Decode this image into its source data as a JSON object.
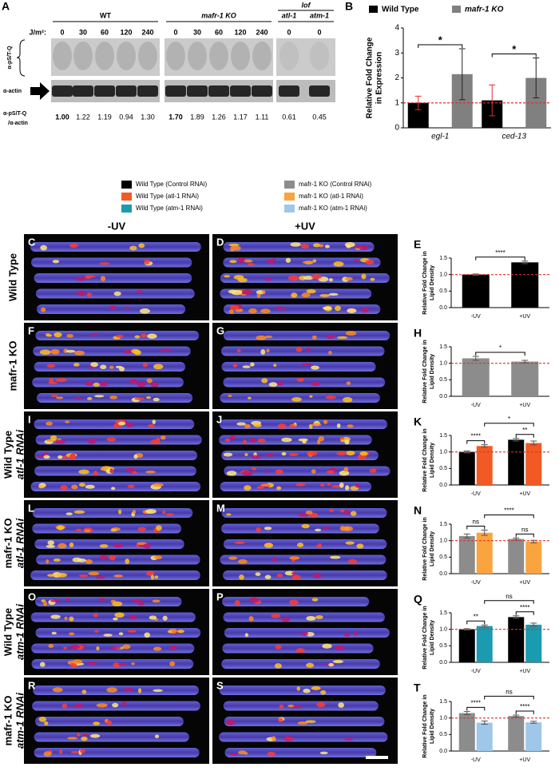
{
  "panel_a": {
    "label": "A",
    "groups": [
      "WT",
      "mafr-1 KO",
      "lof"
    ],
    "lof_strains": [
      "atl-1",
      "atm-1"
    ],
    "dose_label": "J/m²:",
    "doses": [
      0,
      30,
      60,
      120,
      240,
      0,
      30,
      60,
      120,
      240,
      0,
      0
    ],
    "blot_labels": [
      "α-pS/T-Q",
      "α-actin"
    ],
    "ratio_label": [
      "α-pS/T-Q",
      "/α-actin"
    ],
    "ratios": [
      "1.00",
      "1.22",
      "1.19",
      "0.94",
      "1.30",
      "1.70",
      "1.89",
      "1.26",
      "1.17",
      "1.11",
      "0.61",
      "0.45"
    ]
  },
  "legend": [
    {
      "name": "Wild Type (Control RNAi)",
      "color": "#000000"
    },
    {
      "name": "Wild Type (atl-1 RNAi)",
      "color": "#f15a24"
    },
    {
      "name": "Wild Type (atm-1 RNAi)",
      "color": "#1a9bb0"
    },
    {
      "name": "mafr-1 KO (Control RNAi)",
      "color": "#8c8c8c"
    },
    {
      "name": "mafr-1 KO (atl-1 RNAi)",
      "color": "#f9a43f"
    },
    {
      "name": "mafr-1 KO (atm-1 RNAi)",
      "color": "#9ec7ea"
    }
  ],
  "images": {
    "column_titles": [
      "-UV",
      "+UV"
    ],
    "rows": [
      {
        "labels": [
          "C",
          "D"
        ],
        "title": [
          "Wild Type"
        ]
      },
      {
        "labels": [
          "F",
          "G"
        ],
        "title": [
          "mafr-1 KO"
        ]
      },
      {
        "labels": [
          "I",
          "J"
        ],
        "title": [
          "Wild Type",
          "atl-1 RNAi"
        ]
      },
      {
        "labels": [
          "L",
          "M"
        ],
        "title": [
          "mafr-1 KO",
          "atl-1 RNAi"
        ]
      },
      {
        "labels": [
          "O",
          "P"
        ],
        "title": [
          "Wild Type",
          "atm-1 RNAi"
        ]
      },
      {
        "labels": [
          "R",
          "S"
        ],
        "title": [
          "mafr-1 KO",
          "atm-1 RNAi"
        ]
      }
    ]
  },
  "chart_data": [
    {
      "type": "bar",
      "label": "B",
      "categories": [
        "egl-1",
        "ced-13"
      ],
      "y_label": [
        "Relative Fold Change",
        "in Expression"
      ],
      "ylim": [
        0,
        4
      ],
      "yticks": [
        0,
        1,
        2,
        3,
        4
      ],
      "reference_line": 1,
      "reference_color": "#e0312b",
      "series": [
        {
          "name": "Wild Type",
          "color": "#000000",
          "values": [
            1.0,
            1.1
          ],
          "errors": [
            0.27,
            0.62
          ]
        },
        {
          "name": "mafr-1 KO",
          "color": "#808080",
          "values": [
            2.15,
            2.0
          ],
          "errors": [
            1.02,
            0.8
          ]
        }
      ],
      "annotations": [
        "*",
        "*"
      ]
    },
    {
      "type": "bar",
      "label": "E",
      "categories": [
        "-UV",
        "+UV"
      ],
      "y_label": [
        "Relative Fold Change in",
        "Lipid Density"
      ],
      "ylim": [
        0,
        1.5
      ],
      "yticks": [
        {
          "value": 0,
          "label": "0.0"
        },
        {
          "value": 0.5,
          "label": "0.5"
        },
        {
          "value": 1,
          "label": "1.0"
        },
        {
          "value": 1.5,
          "label": "1.5"
        }
      ],
      "reference_line": 1,
      "reference_color": "#e0312b",
      "series": [
        {
          "color": "#000000",
          "values": [
            1.0,
            1.37
          ],
          "errors": [
            0.02,
            0.04
          ]
        }
      ],
      "annotations": [
        "****"
      ]
    },
    {
      "type": "bar",
      "label": "H",
      "categories": [
        "-UV",
        "+UV"
      ],
      "y_label": [
        "Relative Fold Change in",
        "Lipid Density"
      ],
      "ylim": [
        0,
        1.5
      ],
      "yticks": [
        {
          "value": 0,
          "label": "0.0"
        },
        {
          "value": 0.5,
          "label": "0.5"
        },
        {
          "value": 1,
          "label": "1.0"
        },
        {
          "value": 1.5,
          "label": "1.5"
        }
      ],
      "reference_line": 1,
      "reference_color": "#e0312b",
      "series": [
        {
          "color": "#8c8c8c",
          "values": [
            1.15,
            1.05
          ],
          "errors": [
            0.06,
            0.04
          ]
        }
      ],
      "annotations": [
        "*"
      ]
    },
    {
      "type": "bar",
      "label": "K",
      "categories": [
        "-UV",
        "+UV"
      ],
      "y_label": [
        "Relative Fold Change in",
        "Lipid Density"
      ],
      "ylim": [
        0,
        1.5
      ],
      "yticks": [
        {
          "value": 0,
          "label": "0.0"
        },
        {
          "value": 0.5,
          "label": "0.5"
        },
        {
          "value": 1,
          "label": "1.0"
        },
        {
          "value": 1.5,
          "label": "1.5"
        }
      ],
      "reference_line": 1,
      "reference_color": "#e0312b",
      "series": [
        {
          "color": "#000000",
          "values": [
            1.0,
            1.37
          ],
          "errors": [
            0.03,
            0.04
          ]
        },
        {
          "color": "#f15a24",
          "values": [
            1.18,
            1.27
          ],
          "errors": [
            0.04,
            0.06
          ]
        }
      ],
      "annotations": [
        "****",
        "**",
        "*"
      ]
    },
    {
      "type": "bar",
      "label": "N",
      "categories": [
        "-UV",
        "+UV"
      ],
      "y_label": [
        "Relative Fold Change in",
        "Lipid Density"
      ],
      "ylim": [
        0,
        1.5
      ],
      "yticks": [
        {
          "value": 0,
          "label": "0.0"
        },
        {
          "value": 0.5,
          "label": "0.5"
        },
        {
          "value": 1,
          "label": "1.0"
        },
        {
          "value": 1.5,
          "label": "1.5"
        }
      ],
      "reference_line": 1,
      "reference_color": "#e0312b",
      "series": [
        {
          "color": "#8c8c8c",
          "values": [
            1.14,
            1.05
          ],
          "errors": [
            0.06,
            0.03
          ]
        },
        {
          "color": "#f9a43f",
          "values": [
            1.24,
            0.97
          ],
          "errors": [
            0.08,
            0.04
          ]
        }
      ],
      "annotations": [
        "ns",
        "ns",
        "****"
      ]
    },
    {
      "type": "bar",
      "label": "Q",
      "categories": [
        "-UV",
        "+UV"
      ],
      "y_label": [
        "Relative Fold Change in",
        "Lipid Density"
      ],
      "ylim": [
        0,
        1.5
      ],
      "yticks": [
        {
          "value": 0,
          "label": "0.0"
        },
        {
          "value": 0.5,
          "label": "0.5"
        },
        {
          "value": 1,
          "label": "1.0"
        },
        {
          "value": 1.5,
          "label": "1.5"
        }
      ],
      "reference_line": 1,
      "reference_color": "#e0312b",
      "series": [
        {
          "color": "#000000",
          "values": [
            1.0,
            1.37
          ],
          "errors": [
            0.02,
            0.04
          ]
        },
        {
          "color": "#1a9bb0",
          "values": [
            1.1,
            1.14
          ],
          "errors": [
            0.03,
            0.05
          ]
        }
      ],
      "annotations": [
        "**",
        "****",
        "ns"
      ]
    },
    {
      "type": "bar",
      "label": "T",
      "categories": [
        "-UV",
        "+UV"
      ],
      "y_label": [
        "Relative Fold Change in",
        "Lipid Density"
      ],
      "ylim": [
        0,
        1.5
      ],
      "yticks": [
        {
          "value": 0,
          "label": "0.0"
        },
        {
          "value": 0.5,
          "label": "0.5"
        },
        {
          "value": 1,
          "label": "1.0"
        },
        {
          "value": 1.5,
          "label": "1.5"
        }
      ],
      "reference_line": 1,
      "reference_color": "#e0312b",
      "series": [
        {
          "color": "#8c8c8c",
          "values": [
            1.15,
            1.06
          ],
          "errors": [
            0.05,
            0.03
          ]
        },
        {
          "color": "#9ec7ea",
          "values": [
            0.86,
            0.87
          ],
          "errors": [
            0.05,
            0.03
          ]
        }
      ],
      "annotations": [
        "****",
        "****",
        "ns"
      ]
    }
  ]
}
